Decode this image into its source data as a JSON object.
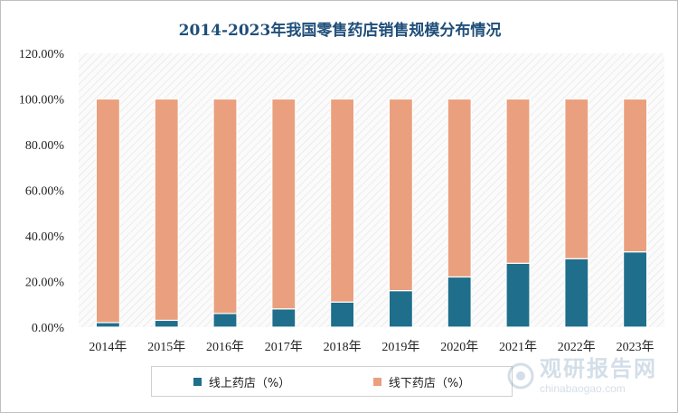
{
  "chart_data": {
    "type": "bar",
    "stacked": true,
    "title": "2014-2023年我国零售药店销售规模分布情况",
    "categories": [
      "2014年",
      "2015年",
      "2016年",
      "2017年",
      "2018年",
      "2019年",
      "2020年",
      "2021年",
      "2022年",
      "2023年"
    ],
    "series": [
      {
        "name": "线上药店（%）",
        "color": "#1f6e8c",
        "values": [
          2.0,
          3.0,
          6.0,
          8.0,
          11.0,
          16.0,
          22.0,
          28.0,
          30.0,
          33.0
        ]
      },
      {
        "name": "线下药店（%）",
        "color": "#eaa07e",
        "values": [
          98.0,
          97.0,
          94.0,
          92.0,
          89.0,
          84.0,
          78.0,
          72.0,
          70.0,
          67.0
        ]
      }
    ],
    "y_ticks": [
      "0.00%",
      "20.00%",
      "40.00%",
      "60.00%",
      "80.00%",
      "100.00%",
      "120.00%"
    ],
    "ylim": [
      0,
      120
    ],
    "xlabel": "",
    "ylabel": "",
    "grid": false,
    "legend_position": "bottom"
  },
  "watermark": {
    "text_cn": "观研报告网",
    "text_en": "chinabaogao.com"
  }
}
